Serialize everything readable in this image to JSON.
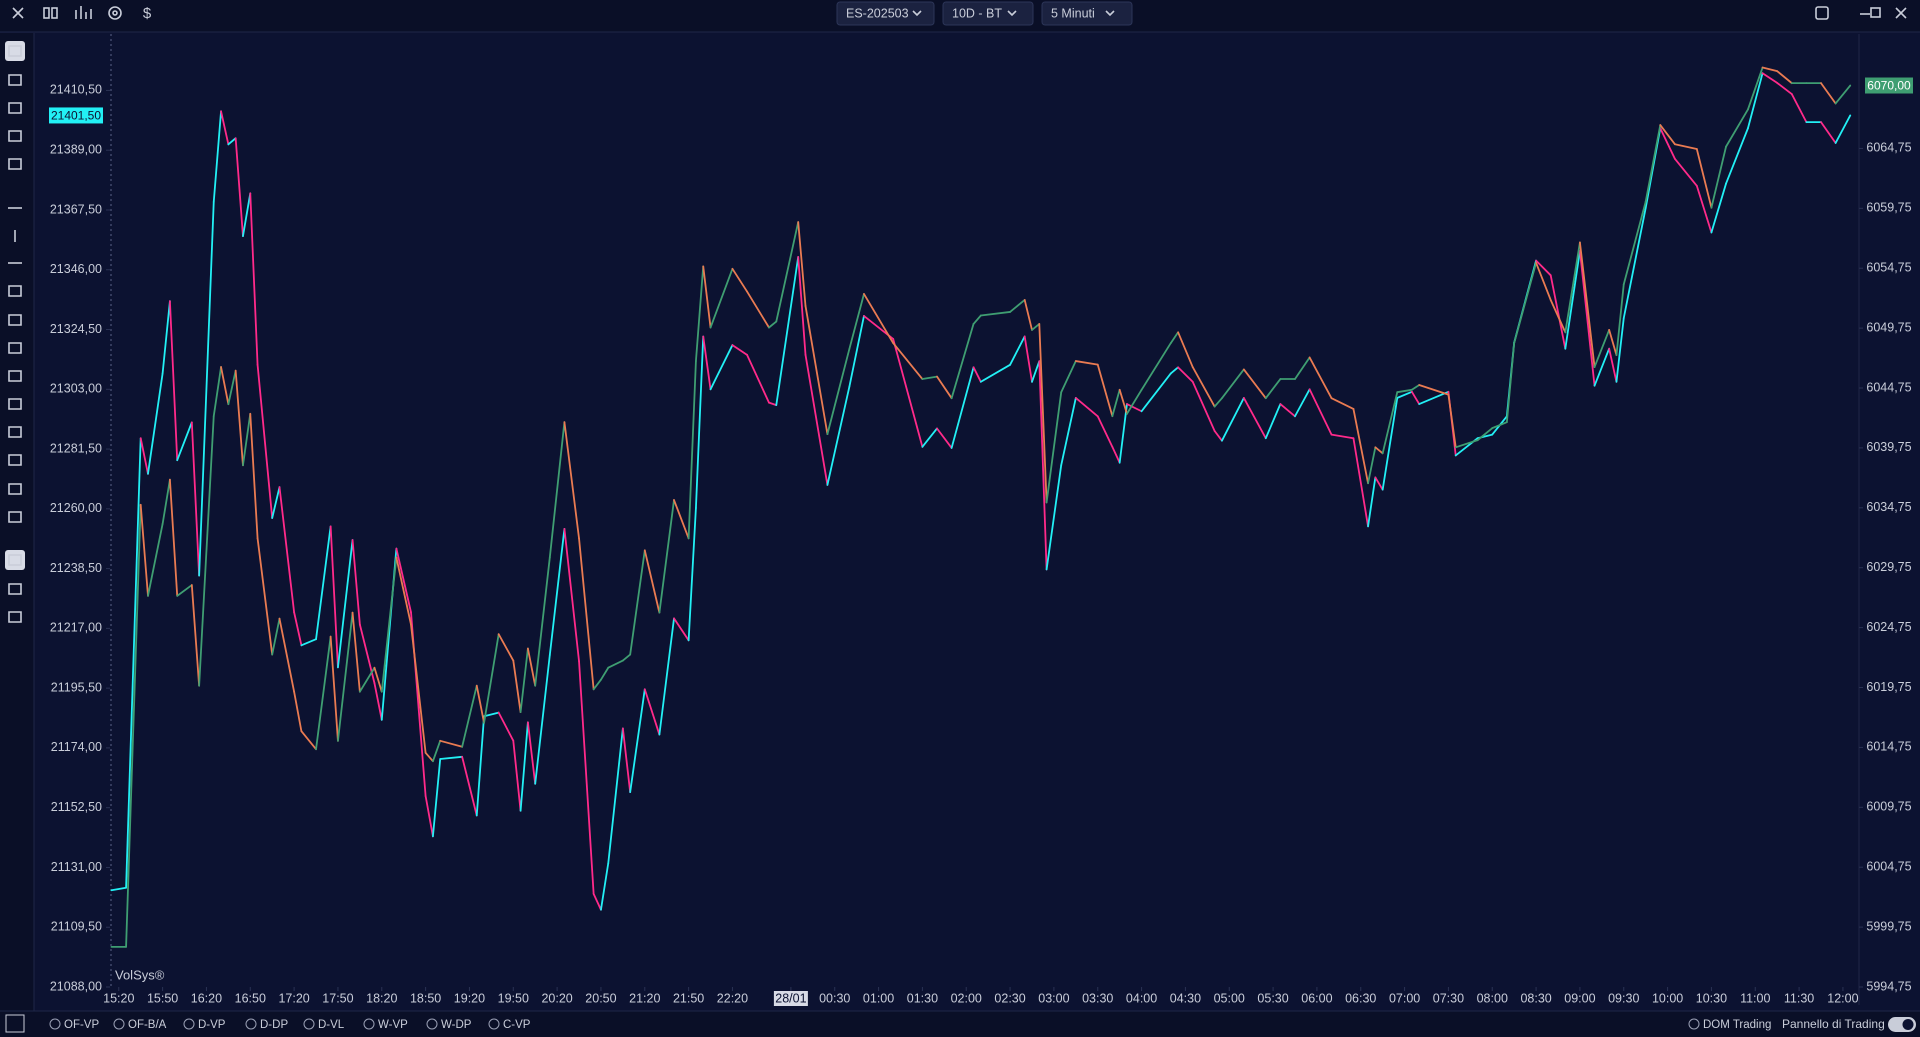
{
  "toolbar": {
    "symbol": "ES-202503",
    "range": "10D - BT",
    "interval": "5 Minuti",
    "currency": "$"
  },
  "watermark": "VolSys®",
  "bottom_bar": {
    "studies": [
      "OF-VP",
      "OF-B/A",
      "D-VP",
      "D-DP",
      "D-VL",
      "W-VP",
      "W-DP",
      "C-VP"
    ],
    "dom": "DOM Trading",
    "panel": "Pannello di Trading"
  },
  "chart_data": {
    "type": "line",
    "x": [
      -1,
      1,
      3,
      4,
      6,
      7,
      8,
      10,
      11,
      13,
      14,
      15,
      16,
      17,
      18,
      19,
      21,
      22,
      24,
      25,
      27,
      29,
      30,
      32,
      33,
      35,
      36,
      38,
      40,
      42,
      43,
      44,
      47,
      49,
      50,
      52,
      54,
      55,
      56,
      57,
      59,
      61,
      63,
      65,
      66,
      67,
      69,
      70,
      72,
      74,
      76,
      78,
      79,
      80,
      81,
      84,
      86,
      89,
      90,
      93,
      94,
      97,
      100,
      102,
      106,
      110,
      112,
      114,
      117,
      118,
      122,
      124,
      125,
      126,
      127,
      129,
      131,
      134,
      136,
      137,
      138,
      140,
      144,
      145,
      147,
      150,
      151,
      154,
      157,
      159,
      161,
      163,
      166,
      169,
      171,
      172,
      173,
      175,
      177,
      178,
      182,
      183,
      186,
      188,
      190,
      191,
      194,
      196,
      198,
      200,
      202,
      204,
      205,
      206,
      209,
      211,
      213,
      216,
      218,
      220,
      223,
      225,
      227,
      229,
      231,
      233,
      235,
      237
    ],
    "xlim": [
      -1.2,
      238.2
    ],
    "xticks": [
      {
        "value": 0,
        "label": "15:20"
      },
      {
        "value": 6,
        "label": "15:50"
      },
      {
        "value": 12,
        "label": "16:20"
      },
      {
        "value": 18,
        "label": "16:50"
      },
      {
        "value": 24,
        "label": "17:20"
      },
      {
        "value": 30,
        "label": "17:50"
      },
      {
        "value": 36,
        "label": "18:20"
      },
      {
        "value": 42,
        "label": "18:50"
      },
      {
        "value": 48,
        "label": "19:20"
      },
      {
        "value": 54,
        "label": "19:50"
      },
      {
        "value": 60,
        "label": "20:20"
      },
      {
        "value": 66,
        "label": "20:50"
      },
      {
        "value": 72,
        "label": "21:20"
      },
      {
        "value": 78,
        "label": "21:50"
      },
      {
        "value": 84,
        "label": "22:20"
      },
      {
        "value": 92,
        "label": "28/01"
      },
      {
        "value": 98,
        "label": "00:30"
      },
      {
        "value": 104,
        "label": "01:00"
      },
      {
        "value": 110,
        "label": "01:30"
      },
      {
        "value": 116,
        "label": "02:00"
      },
      {
        "value": 122,
        "label": "02:30"
      },
      {
        "value": 128,
        "label": "03:00"
      },
      {
        "value": 134,
        "label": "03:30"
      },
      {
        "value": 140,
        "label": "04:00"
      },
      {
        "value": 146,
        "label": "04:30"
      },
      {
        "value": 152,
        "label": "05:00"
      },
      {
        "value": 158,
        "label": "05:30"
      },
      {
        "value": 164,
        "label": "06:00"
      },
      {
        "value": 170,
        "label": "06:30"
      },
      {
        "value": 176,
        "label": "07:00"
      },
      {
        "value": 182,
        "label": "07:30"
      },
      {
        "value": 188,
        "label": "08:00"
      },
      {
        "value": 194,
        "label": "08:30"
      },
      {
        "value": 200,
        "label": "09:00"
      },
      {
        "value": 206,
        "label": "09:30"
      },
      {
        "value": 212,
        "label": "10:00"
      },
      {
        "value": 218,
        "label": "10:30"
      },
      {
        "value": 224,
        "label": "11:00"
      },
      {
        "value": 230,
        "label": "11:30"
      },
      {
        "value": 236,
        "label": "12:00"
      }
    ],
    "ylim": [
      21088,
      21430.8
    ],
    "yticks": [
      {
        "value": 21088,
        "label": "21088,00"
      },
      {
        "value": 21109.5,
        "label": "21109,50"
      },
      {
        "value": 21131,
        "label": "21131,00"
      },
      {
        "value": 21152.5,
        "label": "21152,50"
      },
      {
        "value": 21174,
        "label": "21174,00"
      },
      {
        "value": 21195.5,
        "label": "21195,50"
      },
      {
        "value": 21217,
        "label": "21217,00"
      },
      {
        "value": 21238.5,
        "label": "21238,50"
      },
      {
        "value": 21260,
        "label": "21260,00"
      },
      {
        "value": 21281.5,
        "label": "21281,50"
      },
      {
        "value": 21303,
        "label": "21303,00"
      },
      {
        "value": 21324.5,
        "label": "21324,50"
      },
      {
        "value": 21346,
        "label": "21346,00"
      },
      {
        "value": 21367.5,
        "label": "21367,50"
      },
      {
        "value": 21389,
        "label": "21389,00"
      },
      {
        "value": 21410.5,
        "label": "21410,50"
      }
    ],
    "y2lim": [
      5994.75,
      6074.3
    ],
    "y2ticks": [
      {
        "value": 5994.75,
        "label": "5994,75"
      },
      {
        "value": 5999.75,
        "label": "5999,75"
      },
      {
        "value": 6004.75,
        "label": "6004,75"
      },
      {
        "value": 6009.75,
        "label": "6009,75"
      },
      {
        "value": 6014.75,
        "label": "6014,75"
      },
      {
        "value": 6019.75,
        "label": "6019,75"
      },
      {
        "value": 6024.75,
        "label": "6024,75"
      },
      {
        "value": 6029.75,
        "label": "6029,75"
      },
      {
        "value": 6034.75,
        "label": "6034,75"
      },
      {
        "value": 6039.75,
        "label": "6039,75"
      },
      {
        "value": 6044.75,
        "label": "6044,75"
      },
      {
        "value": 6049.75,
        "label": "6049,75"
      },
      {
        "value": 6054.75,
        "label": "6054,75"
      },
      {
        "value": 6059.75,
        "label": "6059,75"
      },
      {
        "value": 6064.75,
        "label": "6064,75"
      }
    ],
    "series": [
      {
        "axis": "y",
        "up_color": "#22f0f5",
        "down_color": "#ff2a8a",
        "label_color": "#22f0f5",
        "last_value_label": "21401,50",
        "values": [
          21122.8,
          21123.7,
          21285.4,
          21272.6,
          21308.7,
          21334.7,
          21277.5,
          21291.1,
          21236.0,
          21370.4,
          21403.0,
          21391.1,
          21393.3,
          21358.1,
          21373.5,
          21311.8,
          21256.7,
          21267.8,
          21222.8,
          21210.9,
          21213.1,
          21253.7,
          21203.0,
          21248.8,
          21218.4,
          21197.3,
          21184.1,
          21245.7,
          21222.8,
          21156.7,
          21142.2,
          21170.0,
          21170.8,
          21149.7,
          21185.4,
          21186.7,
          21176.6,
          21151.4,
          21183.2,
          21161.1,
          21207.4,
          21252.8,
          21205.2,
          21121.5,
          21115.8,
          21132.5,
          21181.0,
          21158.1,
          21195.1,
          21178.8,
          21220.6,
          21212.7,
          21260.3,
          21322.0,
          21303.0,
          21318.9,
          21315.4,
          21298.2,
          21297.3,
          21350.6,
          21315.4,
          21268.6,
          21303.9,
          21329.4,
          21321.1,
          21282.3,
          21288.9,
          21281.9,
          21310.9,
          21305.7,
          21311.8,
          21322.0,
          21305.7,
          21313.1,
          21238.2,
          21275.7,
          21299.9,
          21293.3,
          21282.3,
          21276.6,
          21297.7,
          21295.1,
          21308.7,
          21310.9,
          21305.7,
          21288.0,
          21284.5,
          21299.9,
          21285.4,
          21297.7,
          21293.3,
          21303.0,
          21286.7,
          21285.4,
          21253.7,
          21271.3,
          21266.9,
          21299.9,
          21302.1,
          21297.7,
          21302.1,
          21279.2,
          21285.4,
          21286.7,
          21293.3,
          21319.8,
          21349.3,
          21344.0,
          21317.6,
          21352.8,
          21304.3,
          21317.6,
          21305.7,
          21328.6,
          21368.2,
          21396.9,
          21385.9,
          21376.2,
          21359.4,
          21377.0,
          21396.9,
          21416.7,
          21413.2,
          21409.2,
          21399.1,
          21399.1,
          21391.6,
          21401.5
        ]
      },
      {
        "axis": "y2",
        "up_color": "#3f9e72",
        "down_color": "#ea7b52",
        "label_color": "#3f9e72",
        "last_value_label": "6070,00",
        "values": [
          5998.1,
          5998.1,
          6035.0,
          6027.4,
          6033.4,
          6037.1,
          6027.4,
          6028.3,
          6019.9,
          6042.4,
          6046.5,
          6043.4,
          6046.2,
          6038.3,
          6042.6,
          6032.2,
          6022.5,
          6025.5,
          6019.4,
          6016.1,
          6014.6,
          6024.0,
          6015.3,
          6026.0,
          6019.4,
          6021.4,
          6019.4,
          6030.6,
          6025.0,
          6014.3,
          6013.6,
          6015.3,
          6014.8,
          6019.9,
          6016.8,
          6024.2,
          6022.0,
          6017.7,
          6023.0,
          6019.9,
          6030.6,
          6041.9,
          6032.2,
          6019.6,
          6020.4,
          6021.4,
          6022.0,
          6022.5,
          6031.2,
          6026.0,
          6035.4,
          6032.2,
          6047.0,
          6054.9,
          6049.8,
          6054.7,
          6052.8,
          6049.8,
          6050.3,
          6058.6,
          6051.6,
          6040.9,
          6048.0,
          6052.6,
          6048.5,
          6045.5,
          6045.7,
          6043.9,
          6050.1,
          6050.8,
          6051.1,
          6052.1,
          6049.6,
          6050.1,
          6035.2,
          6044.4,
          6047.0,
          6046.7,
          6042.4,
          6044.6,
          6042.6,
          6044.6,
          6048.5,
          6049.4,
          6046.5,
          6043.2,
          6043.9,
          6046.3,
          6043.9,
          6045.5,
          6045.5,
          6047.3,
          6043.9,
          6043.0,
          6036.8,
          6039.8,
          6039.3,
          6044.4,
          6044.6,
          6045.0,
          6044.2,
          6039.8,
          6040.4,
          6041.4,
          6041.9,
          6048.5,
          6055.2,
          6052.1,
          6049.4,
          6056.9,
          6046.5,
          6049.6,
          6047.5,
          6053.4,
          6060.3,
          6066.7,
          6065.1,
          6064.7,
          6059.8,
          6064.9,
          6068.0,
          6071.5,
          6071.2,
          6070.2,
          6070.2,
          6070.2,
          6068.5,
          6070.0
        ]
      }
    ]
  }
}
